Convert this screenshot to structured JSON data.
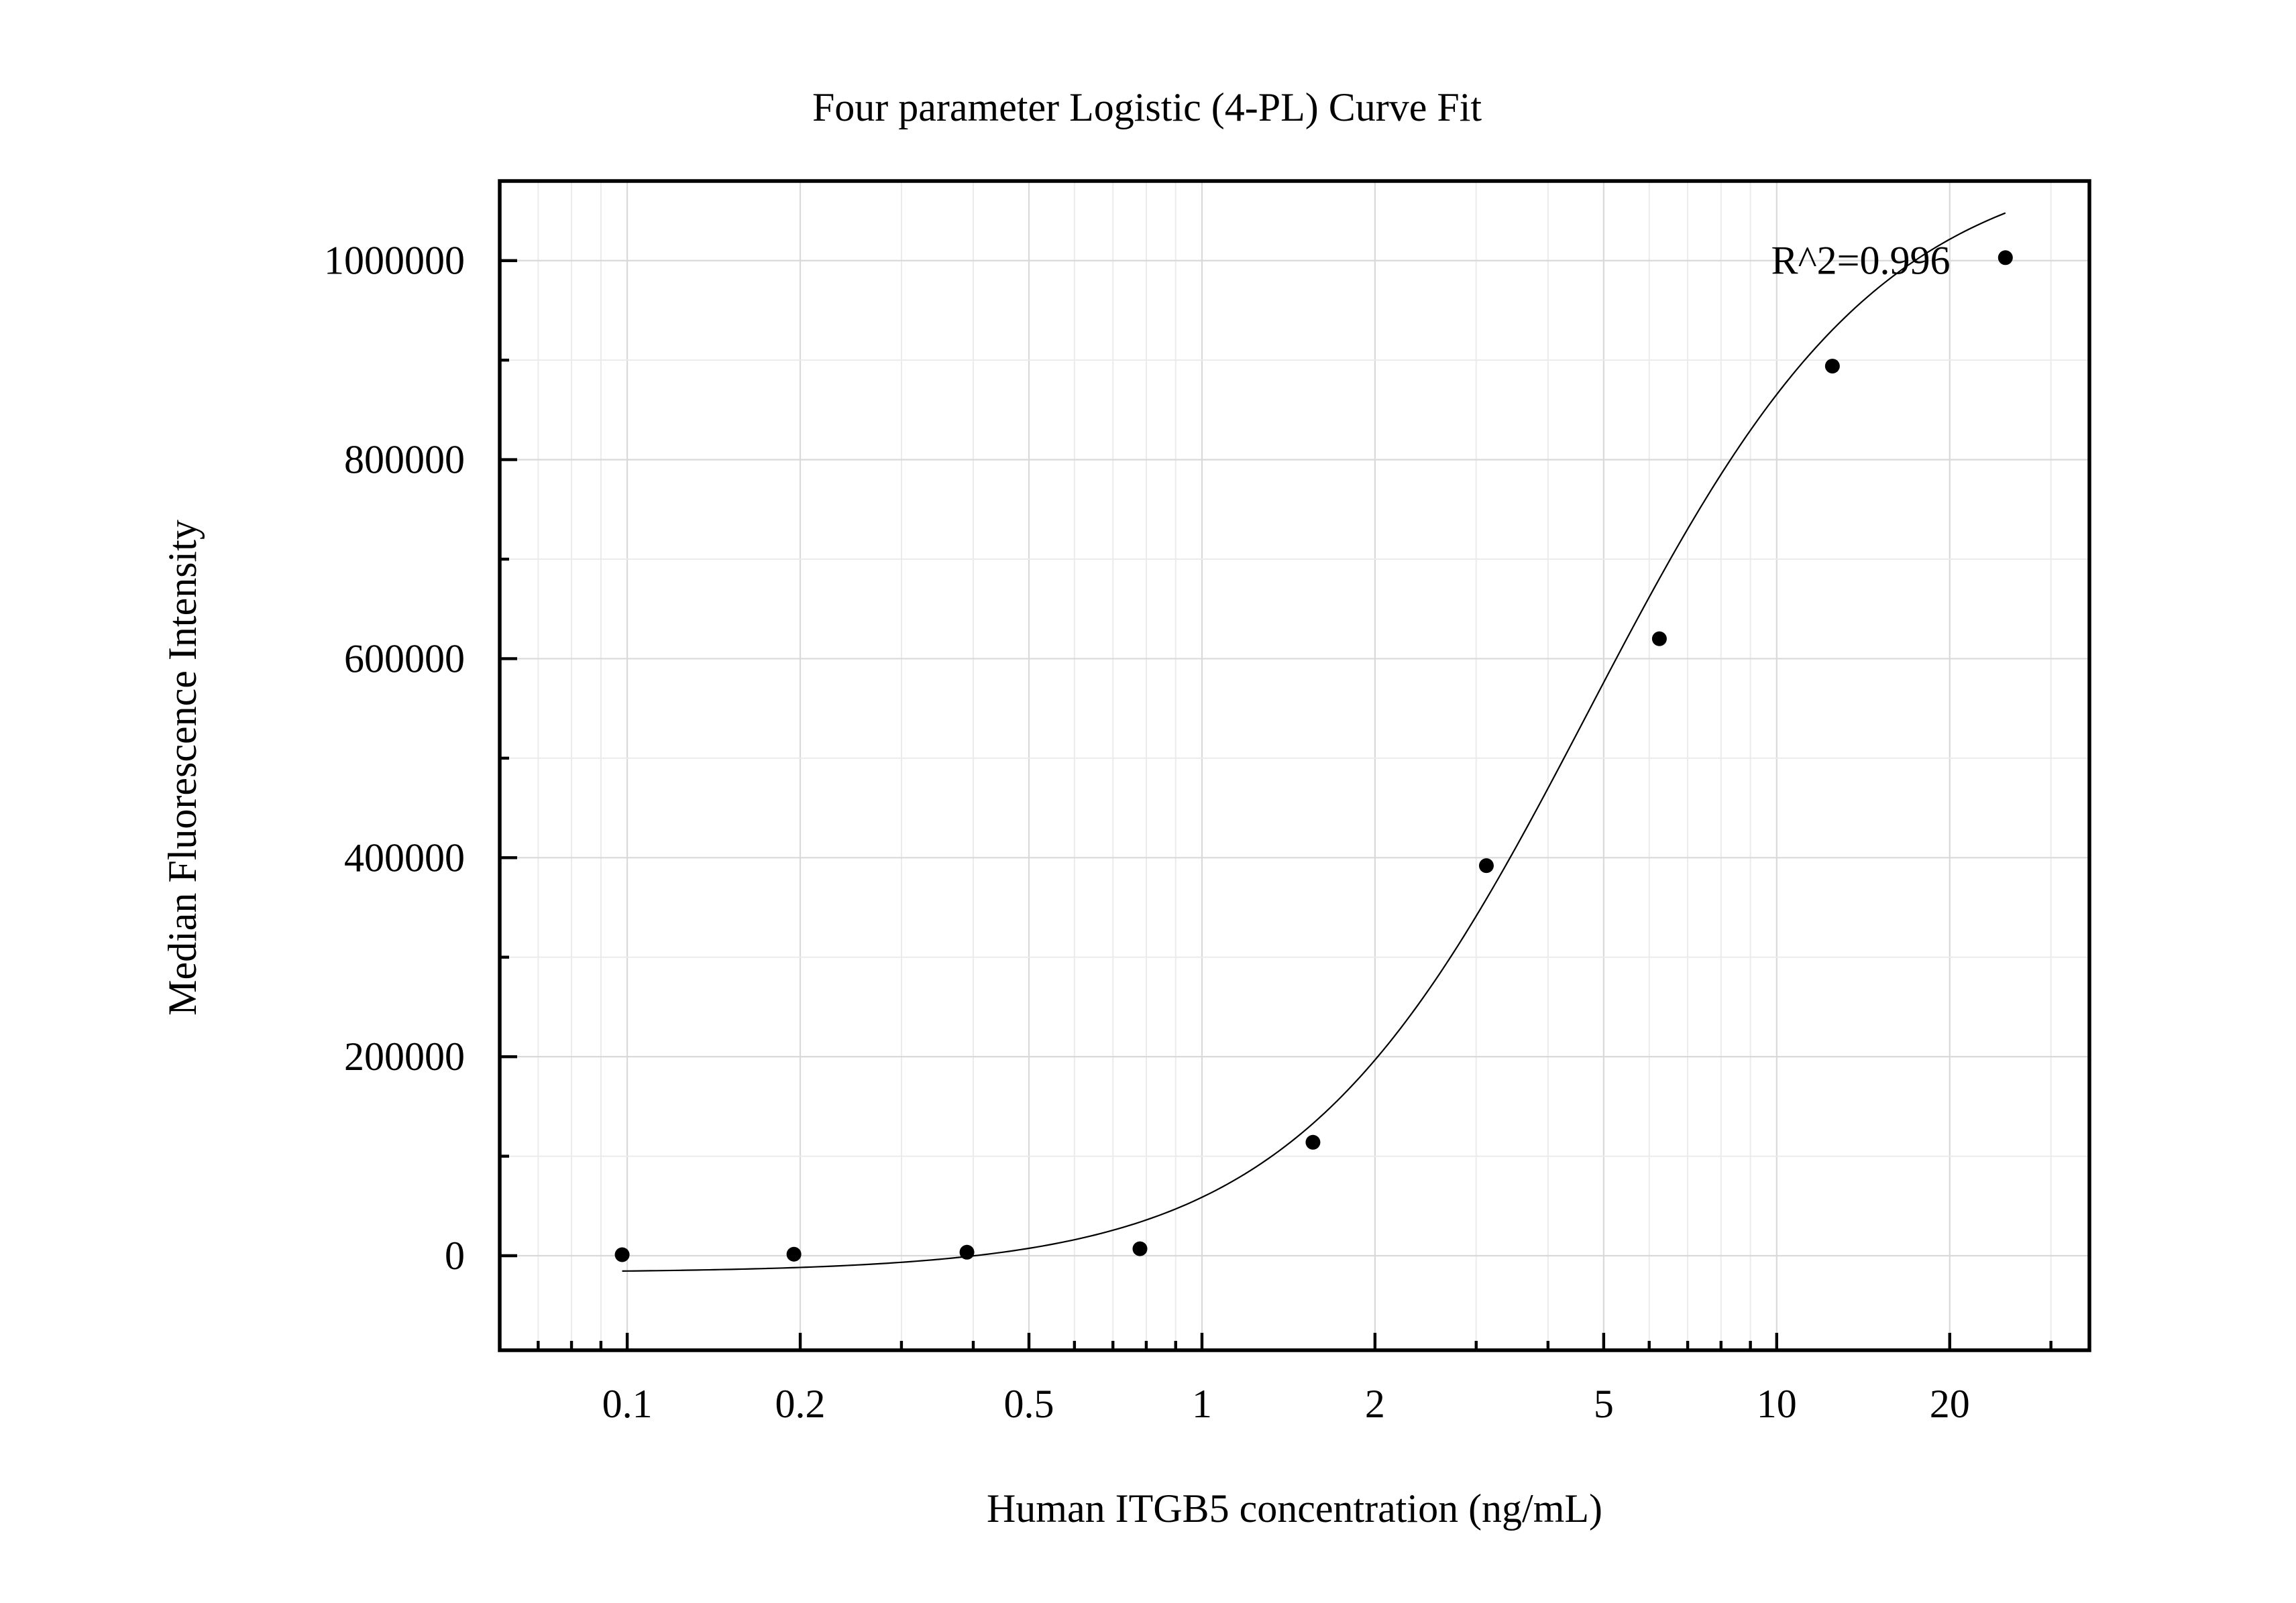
{
  "chart_data": {
    "type": "scatter",
    "title": "Four parameter Logistic (4-PL) Curve Fit",
    "xlabel": "Human ITGB5 concentration (ng/mL)",
    "ylabel": "Median Fluorescence Intensity",
    "xscale": "log",
    "xlim": [
      0.06,
      35
    ],
    "ylim": [
      -95000,
      1080000
    ],
    "grid": true,
    "x_ticks": [
      {
        "value": 0.1,
        "label": "0.1"
      },
      {
        "value": 0.2,
        "label": "0.2"
      },
      {
        "value": 0.5,
        "label": "0.5"
      },
      {
        "value": 1,
        "label": "1"
      },
      {
        "value": 2,
        "label": "2"
      },
      {
        "value": 5,
        "label": "5"
      },
      {
        "value": 10,
        "label": "10"
      },
      {
        "value": 20,
        "label": "20"
      }
    ],
    "y_ticks": [
      {
        "value": 0,
        "label": "0"
      },
      {
        "value": 200000,
        "label": "200000"
      },
      {
        "value": 400000,
        "label": "400000"
      },
      {
        "value": 600000,
        "label": "600000"
      },
      {
        "value": 800000,
        "label": "800000"
      },
      {
        "value": 1000000,
        "label": "1000000"
      }
    ],
    "series": [
      {
        "name": "Standards",
        "type": "scatter",
        "x": [
          0.098,
          0.195,
          0.39,
          0.78,
          1.56,
          3.125,
          6.25,
          12.5,
          25
        ],
        "y": [
          1000,
          1500,
          3500,
          7000,
          114000,
          392000,
          620000,
          894000,
          1003000
        ]
      },
      {
        "name": "4-PL fit",
        "type": "line",
        "model": "4PL",
        "params": {
          "A": -17000,
          "B": 1.7,
          "C": 4.7,
          "D": 1110000
        },
        "x_range": [
          0.098,
          25
        ]
      }
    ],
    "annotations": [
      {
        "text": "R^2=0.996",
        "x": 14,
        "y": 1000000
      }
    ]
  }
}
